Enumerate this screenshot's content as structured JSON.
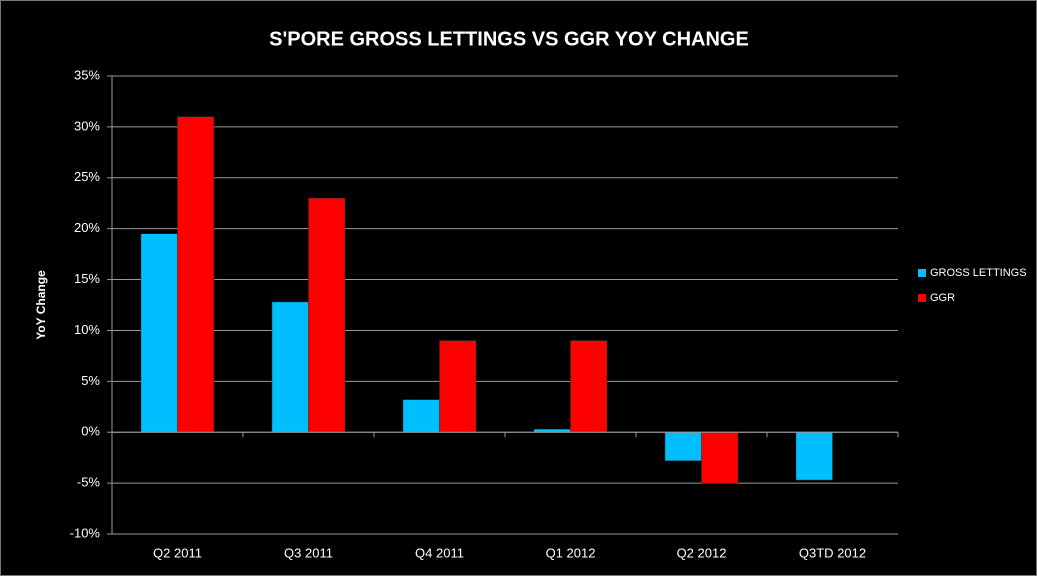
{
  "chart_data": {
    "type": "bar",
    "title": "S'PORE GROSS LETTINGS VS GGR YOY CHANGE",
    "y_label": "YoY Change",
    "categories": [
      "Q2 2011",
      "Q3 2011",
      "Q4 2011",
      "Q1 2012",
      "Q2 2012",
      "Q3TD 2012"
    ],
    "series": [
      {
        "name": "GROSS LETTINGS",
        "color": "#00bfff",
        "values": [
          19.5,
          12.8,
          3.2,
          0.3,
          -2.8,
          -4.7
        ]
      },
      {
        "name": "GGR",
        "color": "#ff0000",
        "values": [
          31,
          23,
          9,
          9,
          -5,
          null
        ]
      }
    ],
    "ylim": [
      -10,
      35
    ],
    "yticks": [
      {
        "value": -10,
        "label": "-10%"
      },
      {
        "value": -5,
        "label": "-5%"
      },
      {
        "value": 0,
        "label": "0%"
      },
      {
        "value": 5,
        "label": "5%"
      },
      {
        "value": 10,
        "label": "10%"
      },
      {
        "value": 15,
        "label": "15%"
      },
      {
        "value": 20,
        "label": "20%"
      },
      {
        "value": 25,
        "label": "25%"
      },
      {
        "value": 30,
        "label": "30%"
      },
      {
        "value": 35,
        "label": "35%"
      }
    ],
    "grid": true,
    "legend": "right"
  }
}
